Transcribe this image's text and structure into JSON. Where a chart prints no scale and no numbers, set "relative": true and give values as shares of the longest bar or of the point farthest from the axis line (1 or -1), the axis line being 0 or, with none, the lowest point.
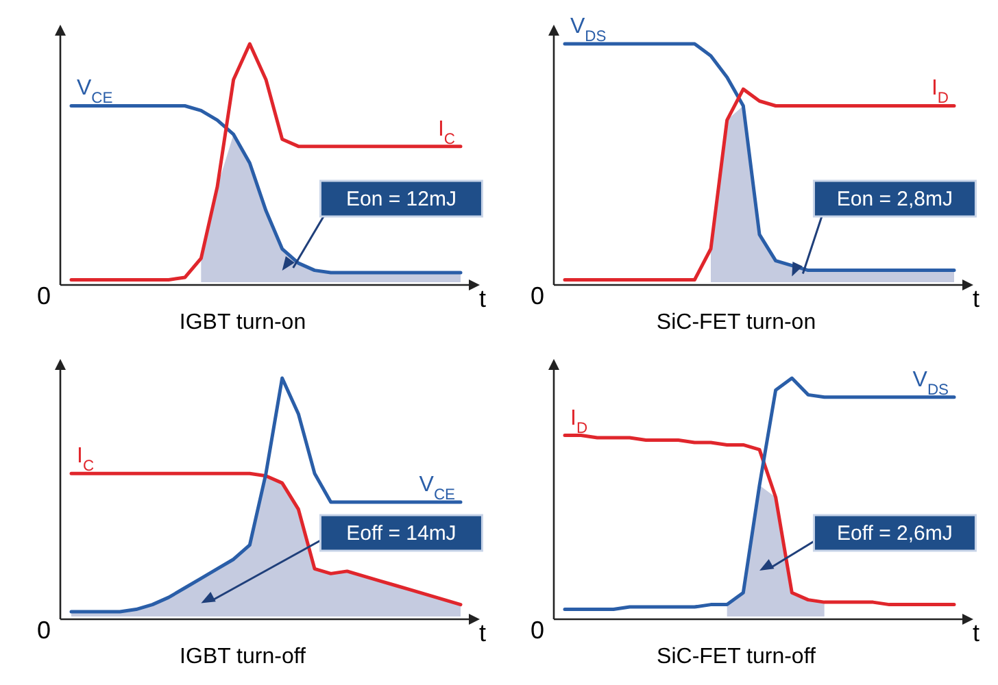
{
  "chart_data": [
    {
      "type": "line",
      "title": "IGBT turn-on",
      "xlabel": "t",
      "relative": true,
      "legend": false,
      "categories": [
        null,
        null,
        null,
        null,
        null,
        null,
        null,
        null,
        null,
        null,
        null,
        null,
        null,
        null,
        null,
        null,
        null,
        null,
        null,
        null,
        null,
        null,
        null,
        null,
        null
      ],
      "annotations": [
        "0",
        "Eon = 12mJ"
      ],
      "series": [
        {
          "type": "area",
          "color": "#c5cbe0",
          "values": [
            null,
            null,
            null,
            null,
            null,
            null,
            null,
            null,
            0.1,
            0.4,
            0.62,
            0.5,
            0.3,
            0.14,
            0.08,
            0.05,
            0.04,
            0.04,
            0.04,
            0.04,
            0.04,
            0.04,
            0.04,
            0.04,
            0.04
          ]
        },
        {
          "name": "V$_{CE}$",
          "color": "#2a5ea8",
          "values": [
            0.74,
            0.74,
            0.74,
            0.74,
            0.74,
            0.74,
            0.74,
            0.74,
            0.72,
            0.68,
            0.62,
            0.5,
            0.3,
            0.14,
            0.08,
            0.05,
            0.04,
            0.04,
            0.04,
            0.04,
            0.04,
            0.04,
            0.04,
            0.04,
            0.04
          ]
        },
        {
          "name": "I$_{C}$",
          "color": "#e0262c",
          "values": [
            0.01,
            0.01,
            0.01,
            0.01,
            0.01,
            0.01,
            0.01,
            0.02,
            0.1,
            0.4,
            0.85,
            1,
            0.85,
            0.6,
            0.57,
            0.57,
            0.57,
            0.57,
            0.57,
            0.57,
            0.57,
            0.57,
            0.57,
            0.57,
            0.57
          ]
        }
      ]
    },
    {
      "type": "line",
      "title": "SiC-FET turn-on",
      "xlabel": "t",
      "relative": true,
      "legend": false,
      "categories": [
        null,
        null,
        null,
        null,
        null,
        null,
        null,
        null,
        null,
        null,
        null,
        null,
        null,
        null,
        null,
        null,
        null,
        null,
        null,
        null,
        null,
        null,
        null,
        null,
        null
      ],
      "annotations": [
        "0",
        "Eon = 2,8mJ"
      ],
      "series": [
        {
          "type": "area",
          "color": "#c5cbe0",
          "values": [
            null,
            null,
            null,
            null,
            null,
            null,
            null,
            null,
            null,
            0.14,
            0.68,
            0.74,
            0.2,
            0.09,
            0.07,
            0.05,
            0.05,
            0.05,
            0.05,
            0.05,
            0.05,
            0.05,
            0.05,
            0.05,
            0.05
          ]
        },
        {
          "name": "V$_{DS}$",
          "color": "#2a5ea8",
          "values": [
            1,
            1,
            1,
            1,
            1,
            1,
            1,
            1,
            1,
            0.95,
            0.86,
            0.74,
            0.2,
            0.09,
            0.07,
            0.05,
            0.05,
            0.05,
            0.05,
            0.05,
            0.05,
            0.05,
            0.05,
            0.05,
            0.05
          ]
        },
        {
          "name": "I$_{D}$",
          "color": "#e0262c",
          "values": [
            0.01,
            0.01,
            0.01,
            0.01,
            0.01,
            0.01,
            0.01,
            0.01,
            0.01,
            0.14,
            0.68,
            0.81,
            0.76,
            0.74,
            0.74,
            0.74,
            0.74,
            0.74,
            0.74,
            0.74,
            0.74,
            0.74,
            0.74,
            0.74,
            0.74
          ]
        }
      ]
    },
    {
      "type": "line",
      "title": "IGBT turn-off",
      "xlabel": "t",
      "relative": true,
      "legend": false,
      "categories": [
        null,
        null,
        null,
        null,
        null,
        null,
        null,
        null,
        null,
        null,
        null,
        null,
        null,
        null,
        null,
        null,
        null,
        null,
        null,
        null,
        null,
        null,
        null,
        null,
        null
      ],
      "annotations": [
        "0",
        "Eoff = 14mJ"
      ],
      "series": [
        {
          "type": "area",
          "color": "#c5cbe0",
          "values": [
            0.02,
            0.02,
            0.02,
            0.02,
            0.03,
            0.05,
            0.08,
            0.12,
            0.16,
            0.2,
            0.24,
            0.3,
            0.59,
            0.56,
            0.45,
            0.2,
            0.18,
            0.19,
            0.17,
            0.15,
            0.13,
            0.11,
            0.09,
            0.07,
            0.05
          ]
        },
        {
          "name": "I$_{C}$",
          "color": "#e0262c",
          "values": [
            0.6,
            0.6,
            0.6,
            0.6,
            0.6,
            0.6,
            0.6,
            0.6,
            0.6,
            0.6,
            0.6,
            0.6,
            0.59,
            0.56,
            0.45,
            0.2,
            0.18,
            0.19,
            0.17,
            0.15,
            0.13,
            0.11,
            0.09,
            0.07,
            0.05
          ]
        },
        {
          "name": "V$_{CE}$",
          "color": "#2a5ea8",
          "values": [
            0.02,
            0.02,
            0.02,
            0.02,
            0.03,
            0.05,
            0.08,
            0.12,
            0.16,
            0.2,
            0.24,
            0.3,
            0.6,
            1,
            0.85,
            0.6,
            0.48,
            0.48,
            0.48,
            0.48,
            0.48,
            0.48,
            0.48,
            0.48,
            0.48
          ]
        }
      ]
    },
    {
      "type": "line",
      "title": "SiC-FET turn-off",
      "xlabel": "t",
      "relative": true,
      "legend": false,
      "categories": [
        null,
        null,
        null,
        null,
        null,
        null,
        null,
        null,
        null,
        null,
        null,
        null,
        null,
        null,
        null,
        null,
        null,
        null,
        null,
        null,
        null,
        null,
        null,
        null,
        null
      ],
      "annotations": [
        "0",
        "Eoff = 2,6mJ"
      ],
      "series": [
        {
          "type": "area",
          "color": "#c5cbe0",
          "values": [
            null,
            null,
            null,
            null,
            null,
            null,
            null,
            null,
            null,
            null,
            0.05,
            0.1,
            0.55,
            0.5,
            0.1,
            0.07,
            0.06,
            null,
            null,
            null,
            null,
            null,
            null,
            null,
            null
          ]
        },
        {
          "name": "I$_{D}$",
          "color": "#e0262c",
          "values": [
            0.76,
            0.76,
            0.75,
            0.75,
            0.75,
            0.74,
            0.74,
            0.74,
            0.73,
            0.73,
            0.72,
            0.72,
            0.7,
            0.5,
            0.1,
            0.07,
            0.06,
            0.06,
            0.06,
            0.06,
            0.05,
            0.05,
            0.05,
            0.05,
            0.05
          ]
        },
        {
          "name": "V$_{DS}$",
          "color": "#2a5ea8",
          "values": [
            0.03,
            0.03,
            0.03,
            0.03,
            0.04,
            0.04,
            0.04,
            0.04,
            0.04,
            0.05,
            0.05,
            0.1,
            0.55,
            0.95,
            1,
            0.93,
            0.92,
            0.92,
            0.92,
            0.92,
            0.92,
            0.92,
            0.92,
            0.92,
            0.92
          ]
        }
      ]
    }
  ]
}
